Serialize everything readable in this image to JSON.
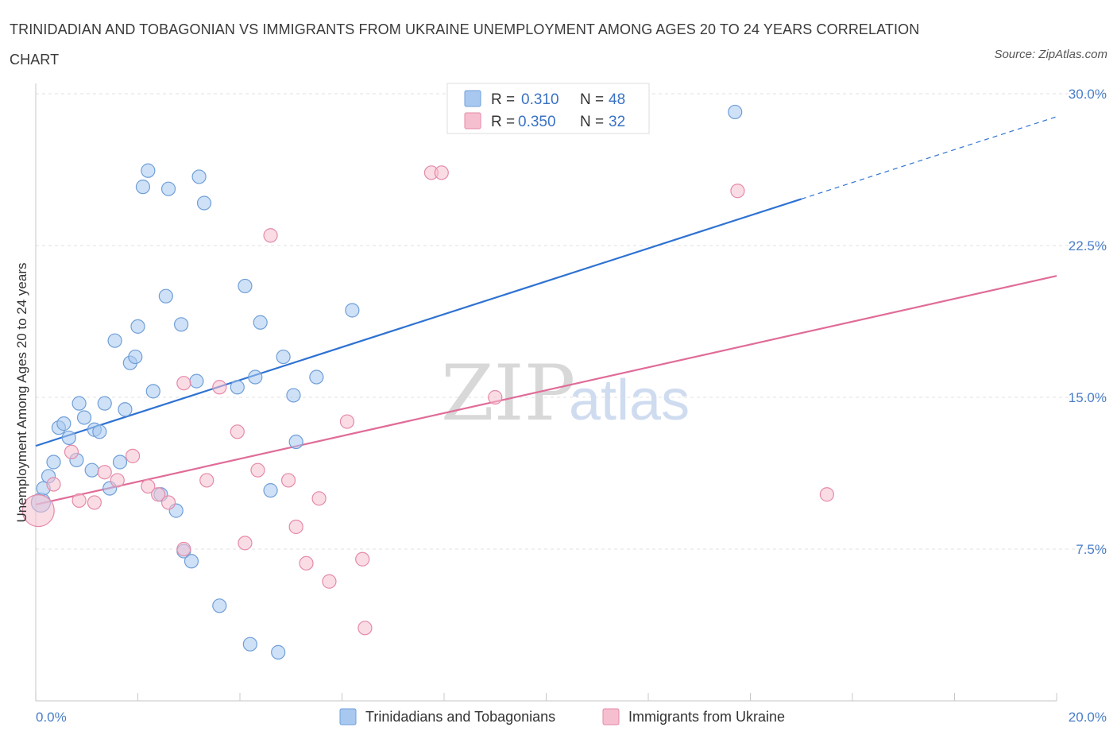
{
  "chart_data": {
    "type": "scatter",
    "title": "TRINIDADIAN AND TOBAGONIAN VS IMMIGRANTS FROM UKRAINE UNEMPLOYMENT AMONG AGES 20 TO 24 YEARS CORRELATION CHART",
    "source": "Source: ZipAtlas.com",
    "ylabel": "Unemployment Among Ages 20 to 24 years",
    "xlim": [
      0,
      20
    ],
    "ylim": [
      0,
      30
    ],
    "x_tick_labels": [
      "0.0%",
      "20.0%"
    ],
    "y_ticks": [
      7.5,
      15,
      22.5,
      30
    ],
    "y_tick_labels": [
      "7.5%",
      "15.0%",
      "22.5%",
      "30.0%"
    ],
    "grid": true,
    "legend_position": "top-center",
    "watermark": {
      "zip": "ZIP",
      "atlas": "atlas"
    },
    "legend": [
      {
        "r_label": "R =",
        "r_value": "0.310",
        "n_label": "N =",
        "n_value": "48"
      },
      {
        "r_label": "R =",
        "r_value": "0.350",
        "n_label": "N =",
        "n_value": "32"
      }
    ],
    "series": [
      {
        "name": "Trinidadians and Tobagonians",
        "color": "#a8c8f0",
        "stroke": "#6f9fd8",
        "line_color": "#2e72d2",
        "trend": {
          "x0": 0,
          "y0": 12.6,
          "x1": 15,
          "y1": 24.8,
          "dash_to_x": 20
        },
        "points": [
          [
            0.1,
            9.8
          ],
          [
            0.15,
            10.5
          ],
          [
            0.25,
            11.1
          ],
          [
            0.35,
            11.8
          ],
          [
            0.45,
            13.5
          ],
          [
            0.65,
            13.0
          ],
          [
            0.55,
            13.7
          ],
          [
            0.8,
            11.9
          ],
          [
            0.85,
            14.7
          ],
          [
            0.95,
            14.0
          ],
          [
            1.1,
            11.4
          ],
          [
            1.15,
            13.4
          ],
          [
            1.25,
            13.3
          ],
          [
            1.35,
            14.7
          ],
          [
            1.45,
            10.5
          ],
          [
            1.55,
            17.8
          ],
          [
            1.65,
            11.8
          ],
          [
            1.75,
            14.4
          ],
          [
            1.85,
            16.7
          ],
          [
            1.95,
            17.0
          ],
          [
            2.0,
            18.5
          ],
          [
            2.1,
            25.4
          ],
          [
            2.2,
            26.2
          ],
          [
            2.3,
            15.3
          ],
          [
            2.45,
            10.2
          ],
          [
            2.55,
            20.0
          ],
          [
            2.6,
            25.3
          ],
          [
            2.75,
            9.4
          ],
          [
            2.85,
            18.6
          ],
          [
            2.9,
            7.4
          ],
          [
            3.05,
            6.9
          ],
          [
            3.15,
            15.8
          ],
          [
            3.2,
            25.9
          ],
          [
            3.3,
            24.6
          ],
          [
            3.6,
            4.7
          ],
          [
            3.95,
            15.5
          ],
          [
            4.1,
            20.5
          ],
          [
            4.2,
            2.8
          ],
          [
            4.3,
            16.0
          ],
          [
            4.4,
            18.7
          ],
          [
            4.6,
            10.4
          ],
          [
            4.75,
            2.4
          ],
          [
            4.85,
            17.0
          ],
          [
            5.05,
            15.1
          ],
          [
            5.1,
            12.8
          ],
          [
            5.5,
            16.0
          ],
          [
            6.2,
            19.3
          ],
          [
            13.7,
            29.1
          ]
        ]
      },
      {
        "name": "Immigrants from Ukraine",
        "color": "#f6bfd0",
        "stroke": "#e58aa8",
        "line_color": "#e06c98",
        "trend": {
          "x0": 0,
          "y0": 9.7,
          "x1": 20,
          "y1": 21.0
        },
        "points": [
          [
            0.05,
            9.4
          ],
          [
            0.35,
            10.7
          ],
          [
            0.7,
            12.3
          ],
          [
            0.85,
            9.9
          ],
          [
            1.15,
            9.8
          ],
          [
            1.35,
            11.3
          ],
          [
            1.6,
            10.9
          ],
          [
            1.9,
            12.1
          ],
          [
            2.2,
            10.6
          ],
          [
            2.4,
            10.2
          ],
          [
            2.6,
            9.8
          ],
          [
            2.9,
            7.5
          ],
          [
            2.9,
            15.7
          ],
          [
            3.35,
            10.9
          ],
          [
            3.6,
            15.5
          ],
          [
            3.95,
            13.3
          ],
          [
            4.1,
            7.8
          ],
          [
            4.35,
            11.4
          ],
          [
            4.6,
            23.0
          ],
          [
            4.95,
            10.9
          ],
          [
            5.1,
            8.6
          ],
          [
            5.3,
            6.8
          ],
          [
            5.55,
            10.0
          ],
          [
            5.75,
            5.9
          ],
          [
            6.1,
            13.8
          ],
          [
            6.4,
            7.0
          ],
          [
            6.45,
            3.6
          ],
          [
            7.75,
            26.1
          ],
          [
            7.95,
            26.1
          ],
          [
            9.0,
            15.0
          ],
          [
            13.75,
            25.2
          ],
          [
            15.5,
            10.2
          ]
        ]
      }
    ]
  }
}
